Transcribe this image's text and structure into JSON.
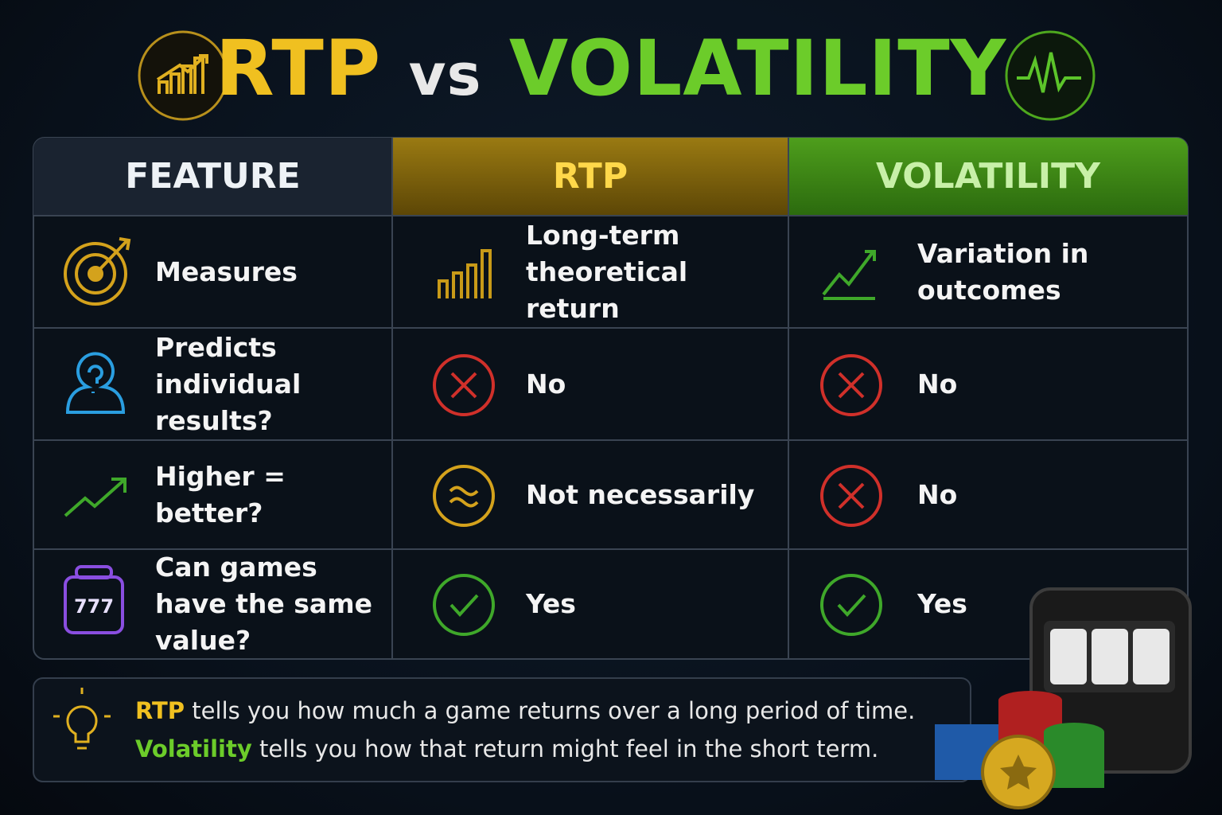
{
  "header": {
    "title_left": "RTP",
    "title_mid": "vs",
    "title_right": "VOLATILITY"
  },
  "table": {
    "headers": [
      "FEATURE",
      "RTP",
      "VOLATILITY"
    ],
    "rows": [
      [
        "Measures",
        "Long-term theoretical return",
        "Variation in outcomes"
      ],
      [
        "Predicts individual results?",
        "No",
        "No"
      ],
      [
        "Higher = better?",
        "Not necessarily",
        "No"
      ],
      [
        "Can games have the same value?",
        "Yes",
        "Yes"
      ]
    ],
    "icon_text": "777"
  },
  "footer": {
    "lines": [
      {
        "highlight": "RTP",
        "text": "tells you how much a game returns over a long period of time."
      },
      {
        "highlight": "Volatility",
        "text": "tells you how that return might feel in the short term."
      }
    ]
  }
}
